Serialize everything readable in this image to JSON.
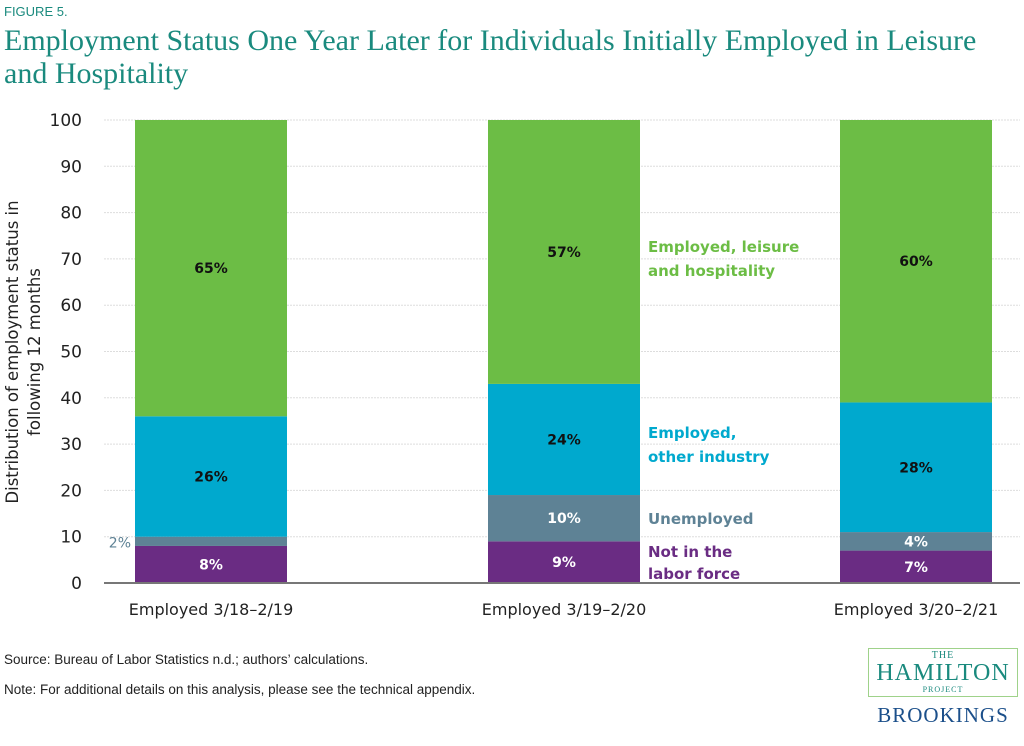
{
  "figure_label": "FIGURE 5.",
  "chart_data": {
    "type": "bar",
    "stacked": true,
    "title": "Employment Status One Year Later for Individuals Initially Employed in Leisure and Hospitality",
    "ylabel": "Distribution of employment status in following 12 months",
    "xlabel": "",
    "ylim": [
      0,
      100
    ],
    "yticks": [
      0,
      10,
      20,
      30,
      40,
      50,
      60,
      70,
      80,
      90,
      100
    ],
    "grid": true,
    "categories": [
      "Employed 3/18–2/19",
      "Employed 3/19–2/20",
      "Employed 3/20–2/21"
    ],
    "series": [
      {
        "name": "Not in the labor force",
        "color": "#6a2c83",
        "values": [
          8,
          9,
          7
        ],
        "labels": [
          "8%",
          "9%",
          "7%"
        ]
      },
      {
        "name": "Unemployed",
        "color": "#5e8295",
        "values": [
          2,
          10,
          4
        ],
        "labels": [
          "2%",
          "10%",
          "4%"
        ]
      },
      {
        "name": "Employed, other industry",
        "color": "#00a9ce",
        "values": [
          26,
          24,
          28
        ],
        "labels": [
          "26%",
          "24%",
          "28%"
        ]
      },
      {
        "name": "Employed, leisure and hospitality",
        "color": "#6cbd45",
        "values": [
          65,
          57,
          60
        ],
        "labels": [
          "65%",
          "57%",
          "60%"
        ]
      }
    ],
    "legend_placement": "inline next to middle bar"
  },
  "source": "Source:  Bureau of Labor Statistics n.d.; authors’ calculations.",
  "note": "Note: For additional details on this analysis, please see the technical appendix.",
  "logo": {
    "the": "THE",
    "hamilton": "HAMILTON",
    "project": "PROJECT",
    "brookings": "BROOKINGS"
  }
}
